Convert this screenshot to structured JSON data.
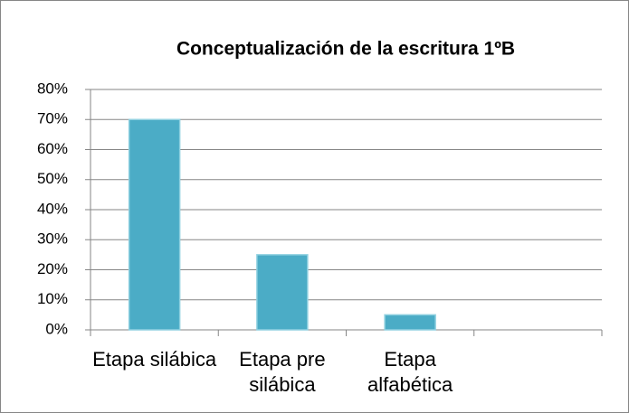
{
  "chart_data": {
    "type": "bar",
    "title": "Conceptualización de la escritura 1ºB",
    "categories": [
      "Etapa silábica",
      "Etapa pre silábica",
      "Etapa alfabética",
      null
    ],
    "values": [
      70,
      25,
      5,
      null
    ],
    "color": "#4bacc6",
    "ylim": [
      0,
      80
    ],
    "yticks": [
      {
        "value": 0,
        "label": "0%"
      },
      {
        "value": 10,
        "label": "10%"
      },
      {
        "value": 20,
        "label": "20%"
      },
      {
        "value": 30,
        "label": "30%"
      },
      {
        "value": 40,
        "label": "40%"
      },
      {
        "value": 50,
        "label": "50%"
      },
      {
        "value": 60,
        "label": "60%"
      },
      {
        "value": 70,
        "label": "70%"
      },
      {
        "value": 80,
        "label": "80%"
      }
    ],
    "grid": true
  }
}
